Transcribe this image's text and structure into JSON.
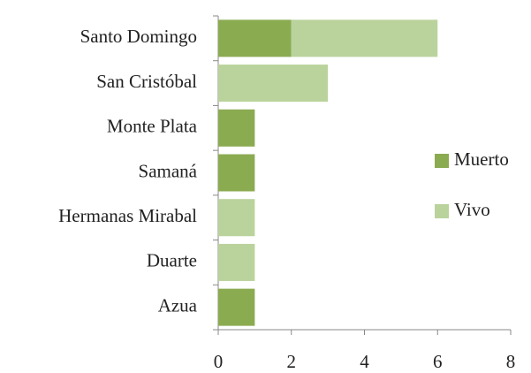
{
  "chart_data": {
    "type": "bar",
    "orientation": "horizontal",
    "stacked": true,
    "categories": [
      "Santo Domingo",
      "San Cristóbal",
      "Monte Plata",
      "Samaná",
      "Hermanas Mirabal",
      "Duarte",
      "Azua"
    ],
    "series": [
      {
        "name": "Muerto",
        "color": "#8bab51",
        "values": [
          2,
          0,
          1,
          1,
          0,
          0,
          1
        ]
      },
      {
        "name": "Vivo",
        "color": "#bad39c",
        "values": [
          4,
          3,
          0,
          0,
          1,
          1,
          0
        ]
      }
    ],
    "xlim": [
      0,
      8
    ],
    "xticks": [
      0,
      2,
      4,
      6,
      8
    ],
    "grid": false,
    "legend": "right"
  }
}
